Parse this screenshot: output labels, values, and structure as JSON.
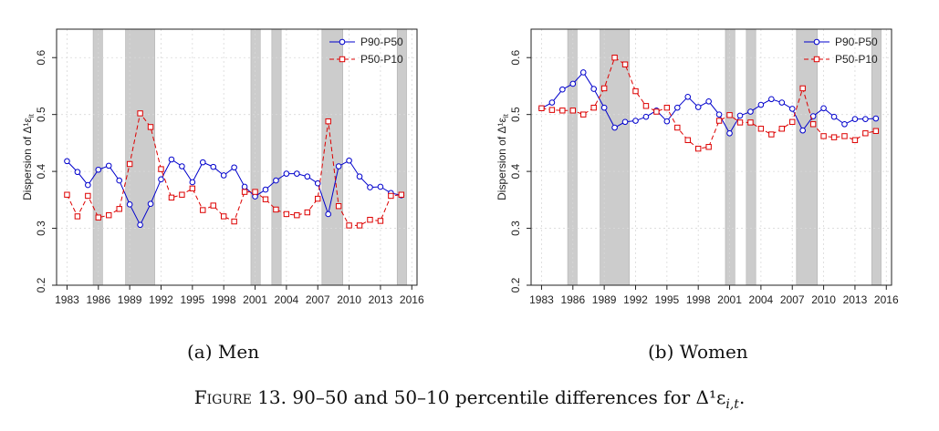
{
  "figure": {
    "label": "Figure 13.",
    "caption_text": "90–50 and 50–10 percentile differences for",
    "caption_math": "Δ¹ε",
    "caption_math_sub": "i,t",
    "caption_end": "."
  },
  "chart_data": [
    {
      "type": "line",
      "panel_caption": "(a) Men",
      "ylabel": "Dispersion of Δ¹ε",
      "ylabel_sub": "it",
      "ylim": [
        0.2,
        0.65
      ],
      "yticks": [
        "0.2",
        "0.3",
        "0.4",
        "0.5",
        "0.6"
      ],
      "xlim": [
        1982,
        2016.5
      ],
      "xticks": [
        "1983",
        "1986",
        "1989",
        "1992",
        "1995",
        "1998",
        "2001",
        "2004",
        "2007",
        "2010",
        "2013",
        "2016"
      ],
      "legend_position": "top-right",
      "grid": true,
      "recession_shading": [
        [
          1985.5,
          1986.4
        ],
        [
          1988.6,
          1991.4
        ],
        [
          2000.6,
          2001.5
        ],
        [
          2002.6,
          2003.5
        ],
        [
          2007.4,
          2009.4
        ],
        [
          2014.6,
          2015.5
        ]
      ],
      "x": [
        1983,
        1984,
        1985,
        1986,
        1987,
        1988,
        1989,
        1990,
        1991,
        1992,
        1993,
        1994,
        1995,
        1996,
        1997,
        1998,
        1999,
        2000,
        2001,
        2002,
        2003,
        2004,
        2005,
        2006,
        2007,
        2008,
        2009,
        2010,
        2011,
        2012,
        2013,
        2014,
        2015
      ],
      "series": [
        {
          "name": "P90-P50",
          "color": "#0000cc",
          "marker": "circle",
          "values": [
            0.418,
            0.399,
            0.376,
            0.403,
            0.41,
            0.384,
            0.342,
            0.306,
            0.343,
            0.386,
            0.421,
            0.409,
            0.381,
            0.416,
            0.408,
            0.393,
            0.407,
            0.373,
            0.356,
            0.368,
            0.384,
            0.396,
            0.396,
            0.391,
            0.379,
            0.325,
            0.409,
            0.419,
            0.391,
            0.372,
            0.373,
            0.362,
            0.358
          ]
        },
        {
          "name": "P50-P10",
          "color": "#dd0000",
          "marker": "square",
          "values": [
            0.359,
            0.321,
            0.357,
            0.319,
            0.323,
            0.334,
            0.413,
            0.502,
            0.478,
            0.404,
            0.354,
            0.359,
            0.37,
            0.332,
            0.34,
            0.321,
            0.312,
            0.364,
            0.364,
            0.351,
            0.333,
            0.325,
            0.323,
            0.328,
            0.352,
            0.488,
            0.339,
            0.305,
            0.305,
            0.315,
            0.313,
            0.357,
            0.359
          ]
        }
      ]
    },
    {
      "type": "line",
      "panel_caption": "(b) Women",
      "ylabel": "Dispersion of Δ¹ε",
      "ylabel_sub": "it",
      "ylim": [
        0.2,
        0.65
      ],
      "yticks": [
        "0.2",
        "0.3",
        "0.4",
        "0.5",
        "0.6"
      ],
      "xlim": [
        1982,
        2016.5
      ],
      "xticks": [
        "1983",
        "1986",
        "1989",
        "1992",
        "1995",
        "1998",
        "2001",
        "2004",
        "2007",
        "2010",
        "2013",
        "2016"
      ],
      "legend_position": "top-right",
      "grid": true,
      "recession_shading": [
        [
          1985.5,
          1986.4
        ],
        [
          1988.6,
          1991.4
        ],
        [
          2000.6,
          2001.5
        ],
        [
          2002.6,
          2003.5
        ],
        [
          2007.4,
          2009.4
        ],
        [
          2014.6,
          2015.5
        ]
      ],
      "x": [
        1983,
        1984,
        1985,
        1986,
        1987,
        1988,
        1989,
        1990,
        1991,
        1992,
        1993,
        1994,
        1995,
        1996,
        1997,
        1998,
        1999,
        2000,
        2001,
        2002,
        2003,
        2004,
        2005,
        2006,
        2007,
        2008,
        2009,
        2010,
        2011,
        2012,
        2013,
        2014,
        2015
      ],
      "series": [
        {
          "name": "P90-P50",
          "color": "#0000cc",
          "marker": "circle",
          "values": [
            0.511,
            0.521,
            0.544,
            0.554,
            0.574,
            0.545,
            0.512,
            0.477,
            0.487,
            0.489,
            0.496,
            0.507,
            0.488,
            0.512,
            0.531,
            0.513,
            0.523,
            0.5,
            0.467,
            0.498,
            0.505,
            0.517,
            0.527,
            0.521,
            0.51,
            0.472,
            0.497,
            0.511,
            0.496,
            0.483,
            0.492,
            0.492,
            0.493
          ]
        },
        {
          "name": "P50-P10",
          "color": "#dd0000",
          "marker": "square",
          "values": [
            0.511,
            0.508,
            0.507,
            0.507,
            0.5,
            0.512,
            0.546,
            0.6,
            0.588,
            0.541,
            0.515,
            0.505,
            0.512,
            0.477,
            0.455,
            0.44,
            0.443,
            0.489,
            0.499,
            0.486,
            0.486,
            0.475,
            0.465,
            0.475,
            0.487,
            0.546,
            0.483,
            0.462,
            0.46,
            0.462,
            0.455,
            0.467,
            0.471
          ]
        }
      ]
    }
  ]
}
